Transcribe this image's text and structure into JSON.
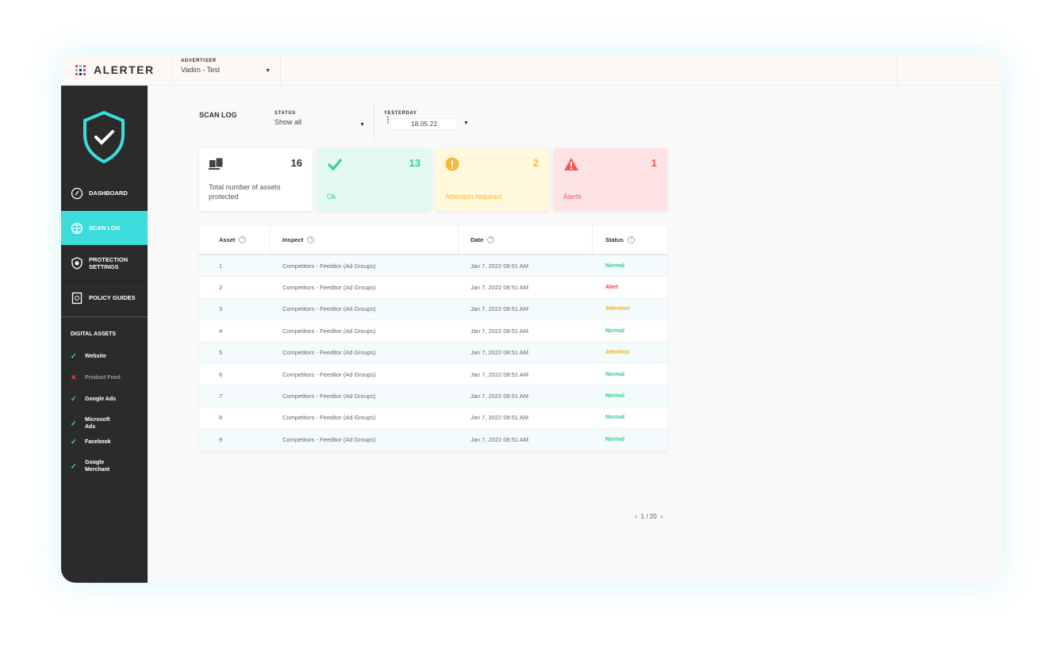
{
  "app": {
    "name": "ALERTER",
    "logo_colors": [
      "#e84c4c",
      "#3ddcdc",
      "#e84c4c",
      "#3ddcdc",
      "#333333",
      "#8a4cf0",
      "#e84c4c",
      "#333333",
      "#8a4cf0"
    ]
  },
  "header": {
    "advertiser_label": "ADVERTISER",
    "advertiser_value": "Vadim - Test"
  },
  "sidebar": {
    "nav": [
      {
        "label": "DASHBOARD",
        "icon": "gauge-icon"
      },
      {
        "label": "SCAN LOG",
        "icon": "globe-icon",
        "active": true
      },
      {
        "label": "PROTECTION SETTINGS",
        "icon": "shield-gear-icon"
      },
      {
        "label": "POLICY GUIDES",
        "icon": "book-icon"
      }
    ],
    "assets_title": "DIGITAL ASSETS",
    "assets": [
      {
        "label": "Website",
        "ok": true
      },
      {
        "label": "Product Feed",
        "ok": false
      },
      {
        "label": "Google Ads",
        "ok": true
      },
      {
        "label": "Microsoft Ads",
        "ok": true
      },
      {
        "label": "Facebook",
        "ok": true
      },
      {
        "label": "Google Merchant",
        "ok": true
      }
    ]
  },
  "page": {
    "title": "SCAN LOG",
    "status_label": "STATUS",
    "status_value": "Show all",
    "date_label": "YESTERDAY",
    "date_value": "18.05.22"
  },
  "cards": [
    {
      "count": "16",
      "label": "Total number of assets protected",
      "color": "#333333",
      "bg": "#ffffff"
    },
    {
      "count": "13",
      "label": "Ok",
      "color": "#2ecf8f",
      "bg": "#e3faf3"
    },
    {
      "count": "2",
      "label": "Attention required",
      "color": "#f5b93a",
      "bg": "#fff8dd"
    },
    {
      "count": "1",
      "label": "Alerts",
      "color": "#ee5a5a",
      "bg": "#fde3e3"
    }
  ],
  "table": {
    "headers": [
      "Asset",
      "Inspect",
      "Date",
      "Status"
    ],
    "rows": [
      [
        "1",
        "Competitors - Feeditor (Ad Groups)",
        "Jan 7, 2022 08:51 AM",
        "Normal"
      ],
      [
        "2",
        "Competitors - Feeditor (Ad Groups)",
        "Jan 7, 2022 08:51 AM",
        "Alert"
      ],
      [
        "3",
        "Competitors - Feeditor (Ad Groups)",
        "Jan 7, 2022 08:51 AM",
        "Attention"
      ],
      [
        "4",
        "Competitors - Feeditor (Ad Groups)",
        "Jan 7, 2022 08:51 AM",
        "Normal"
      ],
      [
        "5",
        "Competitors - Feeditor (Ad Groups)",
        "Jan 7, 2022 08:51 AM",
        "Attention"
      ],
      [
        "6",
        "Competitors - Feeditor (Ad Groups)",
        "Jan 7, 2022 08:51 AM",
        "Normal"
      ],
      [
        "7",
        "Competitors - Feeditor (Ad Groups)",
        "Jan 7, 2022 08:51 AM",
        "Normal"
      ],
      [
        "8",
        "Competitors - Feeditor (Ad Groups)",
        "Jan 7, 2022 08:51 AM",
        "Normal"
      ],
      [
        "9",
        "Competitors - Feeditor (Ad Groups)",
        "Jan 7, 2022 08:51 AM",
        "Normal"
      ]
    ],
    "status_colors": {
      "Normal": "#2ecf8f",
      "Alert": "#ee3a3a",
      "Attention": "#f5b01a"
    }
  },
  "pagination": {
    "text": "1 / 20"
  }
}
